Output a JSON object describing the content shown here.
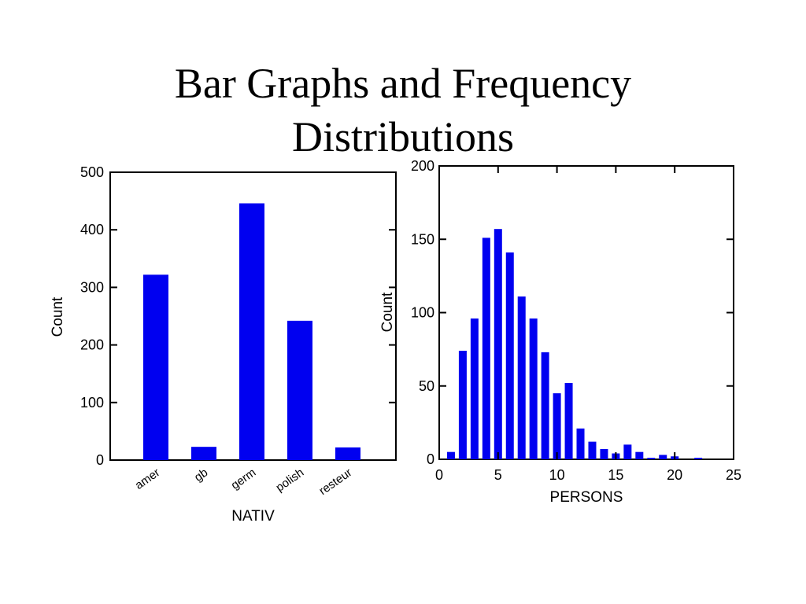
{
  "slide": {
    "title_line1": "Bar Graphs and Frequency",
    "title_line2": "Distributions"
  },
  "colors": {
    "bar": "#0000f0",
    "axis": "#000000",
    "background": "#ffffff"
  },
  "chart_data": [
    {
      "type": "bar",
      "xlabel": "NATIV",
      "ylabel": "Count",
      "categories": [
        "amer",
        "gb",
        "germ",
        "polish",
        "resteur"
      ],
      "values": [
        322,
        23,
        446,
        242,
        22
      ],
      "ylim": [
        0,
        500
      ],
      "yticks": [
        0,
        100,
        200,
        300,
        400,
        500
      ],
      "grid": false,
      "x_tick_rotation_deg": -35
    },
    {
      "type": "bar",
      "xlabel": "PERSONS",
      "ylabel": "Count",
      "x": [
        1,
        2,
        3,
        4,
        5,
        6,
        7,
        8,
        9,
        10,
        11,
        12,
        13,
        14,
        15,
        16,
        17,
        18,
        19,
        20,
        22
      ],
      "values": [
        5,
        74,
        96,
        151,
        157,
        141,
        111,
        96,
        73,
        45,
        52,
        21,
        12,
        7,
        4,
        10,
        5,
        1,
        3,
        2,
        1
      ],
      "xlim": [
        0,
        25
      ],
      "xticks": [
        0,
        5,
        10,
        15,
        20,
        25
      ],
      "ylim": [
        0,
        200
      ],
      "yticks": [
        0,
        50,
        100,
        150,
        200
      ],
      "grid": false
    }
  ]
}
